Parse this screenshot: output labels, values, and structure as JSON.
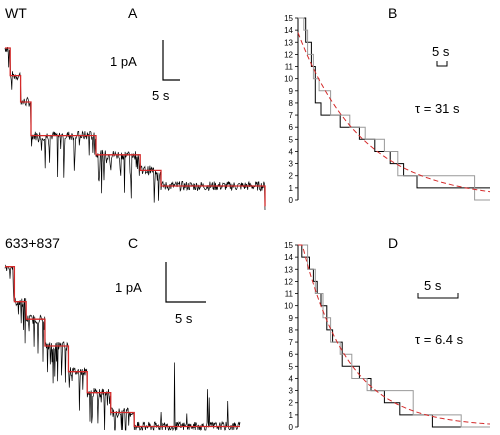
{
  "figure": {
    "labels": {
      "a": "A",
      "b": "B",
      "c": "C",
      "d": "D",
      "wt": "WT",
      "mutant": "633+837"
    },
    "scale_bars": {
      "a_current": "1 pA",
      "a_time": "5 s",
      "b_time": "5 s",
      "c_current": "1 pA",
      "c_time": "5 s",
      "d_time": "5 s"
    },
    "tau": {
      "b": "τ = 31 s",
      "d": "τ = 6.4 s"
    }
  },
  "chart_data": [
    {
      "panel": "A",
      "type": "line",
      "description_free": true,
      "series": [
        {
          "name": "",
          "color": "#000000",
          "kind": "raw-current"
        },
        {
          "name": "",
          "color": "#d42a2a",
          "kind": "idealized-steps",
          "steps": [
            {
              "t": 0.0,
              "level": 13.5
            },
            {
              "t": 0.02,
              "level": 11.2
            },
            {
              "t": 0.06,
              "level": 9.0
            },
            {
              "t": 0.1,
              "level": 6.2
            },
            {
              "t": 0.35,
              "level": 4.6
            },
            {
              "t": 0.52,
              "level": 3.3
            },
            {
              "t": 0.6,
              "level": 2.0
            },
            {
              "t": 1.0,
              "level": 0.3
            }
          ]
        }
      ]
    },
    {
      "panel": "B",
      "type": "line",
      "ylim": [
        0,
        15
      ],
      "yticks": [
        0,
        1,
        2,
        3,
        4,
        5,
        6,
        7,
        8,
        9,
        10,
        11,
        12,
        13,
        14,
        15
      ],
      "series": [
        {
          "name": "",
          "color": "#000000",
          "kind": "step",
          "points": [
            [
              0,
              15
            ],
            [
              0.04,
              15
            ],
            [
              0.04,
              13
            ],
            [
              0.07,
              13
            ],
            [
              0.07,
              11
            ],
            [
              0.09,
              11
            ],
            [
              0.09,
              8
            ],
            [
              0.12,
              8
            ],
            [
              0.12,
              7
            ],
            [
              0.22,
              7
            ],
            [
              0.22,
              6
            ],
            [
              0.32,
              6
            ],
            [
              0.32,
              5
            ],
            [
              0.4,
              5
            ],
            [
              0.4,
              4
            ],
            [
              0.48,
              4
            ],
            [
              0.48,
              3
            ],
            [
              0.55,
              3
            ],
            [
              0.55,
              2
            ],
            [
              0.62,
              2
            ],
            [
              0.62,
              1
            ],
            [
              1.0,
              1
            ]
          ]
        },
        {
          "name": "",
          "color": "#999999",
          "kind": "step",
          "points": [
            [
              0,
              15
            ],
            [
              0.03,
              15
            ],
            [
              0.03,
              14
            ],
            [
              0.05,
              14
            ],
            [
              0.05,
              12
            ],
            [
              0.08,
              12
            ],
            [
              0.08,
              10
            ],
            [
              0.11,
              10
            ],
            [
              0.11,
              9
            ],
            [
              0.17,
              9
            ],
            [
              0.17,
              7
            ],
            [
              0.27,
              7
            ],
            [
              0.27,
              6
            ],
            [
              0.35,
              6
            ],
            [
              0.35,
              5
            ],
            [
              0.45,
              5
            ],
            [
              0.45,
              4
            ],
            [
              0.52,
              4
            ],
            [
              0.52,
              2
            ],
            [
              0.92,
              2
            ],
            [
              0.92,
              0
            ],
            [
              1.0,
              0
            ]
          ]
        },
        {
          "name": "",
          "color": "#d42a2a",
          "kind": "exp-fit",
          "a": 13.8,
          "k": 3.0
        }
      ]
    },
    {
      "panel": "C",
      "type": "line",
      "series": [
        {
          "name": "",
          "color": "#000000",
          "kind": "raw-current"
        },
        {
          "name": "",
          "color": "#d42a2a",
          "kind": "idealized-steps",
          "steps": [
            {
              "t": 0.0,
              "level": 14.0
            },
            {
              "t": 0.04,
              "level": 11.0
            },
            {
              "t": 0.09,
              "level": 9.5
            },
            {
              "t": 0.17,
              "level": 7.2
            },
            {
              "t": 0.27,
              "level": 5.0
            },
            {
              "t": 0.35,
              "level": 3.2
            },
            {
              "t": 0.45,
              "level": 1.5
            },
            {
              "t": 0.55,
              "level": 0.3
            }
          ]
        }
      ]
    },
    {
      "panel": "D",
      "type": "line",
      "ylim": [
        0,
        15
      ],
      "yticks": [
        0,
        1,
        2,
        3,
        4,
        5,
        6,
        7,
        8,
        9,
        10,
        11,
        12,
        13,
        14,
        15
      ],
      "series": [
        {
          "name": "",
          "color": "#000000",
          "kind": "step",
          "points": [
            [
              0,
              15
            ],
            [
              0.02,
              15
            ],
            [
              0.02,
              14
            ],
            [
              0.06,
              14
            ],
            [
              0.06,
              13
            ],
            [
              0.08,
              13
            ],
            [
              0.08,
              12
            ],
            [
              0.1,
              12
            ],
            [
              0.1,
              11
            ],
            [
              0.12,
              11
            ],
            [
              0.12,
              10
            ],
            [
              0.15,
              10
            ],
            [
              0.15,
              8
            ],
            [
              0.18,
              8
            ],
            [
              0.18,
              7
            ],
            [
              0.23,
              7
            ],
            [
              0.23,
              5
            ],
            [
              0.32,
              5
            ],
            [
              0.32,
              4
            ],
            [
              0.38,
              4
            ],
            [
              0.38,
              3
            ],
            [
              0.45,
              3
            ],
            [
              0.45,
              2
            ],
            [
              0.53,
              2
            ],
            [
              0.53,
              1
            ],
            [
              0.7,
              1
            ],
            [
              0.7,
              0
            ],
            [
              1.0,
              0
            ]
          ]
        },
        {
          "name": "",
          "color": "#999999",
          "kind": "step",
          "points": [
            [
              0,
              15
            ],
            [
              0.05,
              15
            ],
            [
              0.05,
              13
            ],
            [
              0.09,
              13
            ],
            [
              0.09,
              11
            ],
            [
              0.13,
              11
            ],
            [
              0.13,
              9
            ],
            [
              0.17,
              9
            ],
            [
              0.17,
              7
            ],
            [
              0.22,
              7
            ],
            [
              0.22,
              6
            ],
            [
              0.28,
              6
            ],
            [
              0.28,
              4
            ],
            [
              0.36,
              4
            ],
            [
              0.36,
              3
            ],
            [
              0.6,
              3
            ],
            [
              0.6,
              1
            ],
            [
              0.85,
              1
            ],
            [
              0.85,
              0
            ],
            [
              1.0,
              0
            ]
          ]
        },
        {
          "name": "",
          "color": "#d42a2a",
          "kind": "exp-fit",
          "a": 16.5,
          "k": 4.2
        }
      ]
    }
  ]
}
